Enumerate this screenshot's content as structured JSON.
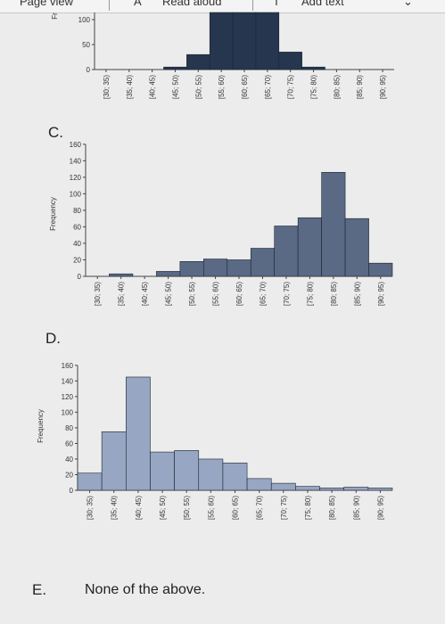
{
  "toolbar": {
    "items": [
      "Page view",
      "A",
      "Read aloud",
      "T",
      "Add text"
    ]
  },
  "options": {
    "c_label": "C.",
    "d_label": "D.",
    "e_label": "E.",
    "e_text": "None of the above."
  },
  "chart_data": [
    {
      "id": "top",
      "type": "bar",
      "categories": [
        "[30; 35)",
        "[35; 40)",
        "[40; 45)",
        "[45; 50)",
        "[50; 55)",
        "[55; 60)",
        "[60; 65)",
        "[65; 70)",
        "[70; 75)",
        "[75; 80)",
        "[80; 85)",
        "[85; 90)",
        "[90; 95)"
      ],
      "values": [
        0,
        0,
        0,
        5,
        30,
        115,
        120,
        115,
        35,
        5,
        0,
        0,
        0
      ],
      "ylabel": "Fr",
      "yticks": [
        0,
        50,
        100
      ],
      "ylim": [
        0,
        130
      ],
      "color": "#26364f"
    },
    {
      "id": "c",
      "type": "bar",
      "categories": [
        "[30; 35)",
        "[35; 40)",
        "[40; 45)",
        "[45; 50)",
        "[50; 55)",
        "[55; 60)",
        "[60; 65)",
        "[65; 70)",
        "[70; 75)",
        "[75; 80)",
        "[80; 85)",
        "[85; 90)",
        "[90; 95)"
      ],
      "values": [
        0,
        3,
        0,
        6,
        18,
        21,
        20,
        34,
        61,
        71,
        126,
        70,
        16
      ],
      "ylabel": "Frequency",
      "yticks": [
        0,
        20,
        40,
        60,
        80,
        100,
        120,
        140,
        160
      ],
      "ylim": [
        0,
        160
      ],
      "color": "#5a6a84"
    },
    {
      "id": "d",
      "type": "bar",
      "categories": [
        "[30; 35)",
        "[35; 40)",
        "[40; 45)",
        "[45; 50)",
        "[50; 55)",
        "[55; 60)",
        "[60; 65)",
        "[65; 70)",
        "[70; 75)",
        "[75; 80)",
        "[80; 85)",
        "[85; 90)",
        "[90; 95)"
      ],
      "values": [
        22,
        75,
        145,
        49,
        51,
        40,
        35,
        15,
        9,
        5,
        3,
        4,
        3
      ],
      "ylabel": "Frequency",
      "yticks": [
        0,
        20,
        40,
        60,
        80,
        100,
        120,
        140,
        160
      ],
      "ylim": [
        0,
        160
      ],
      "color": "#97a6c2"
    }
  ]
}
